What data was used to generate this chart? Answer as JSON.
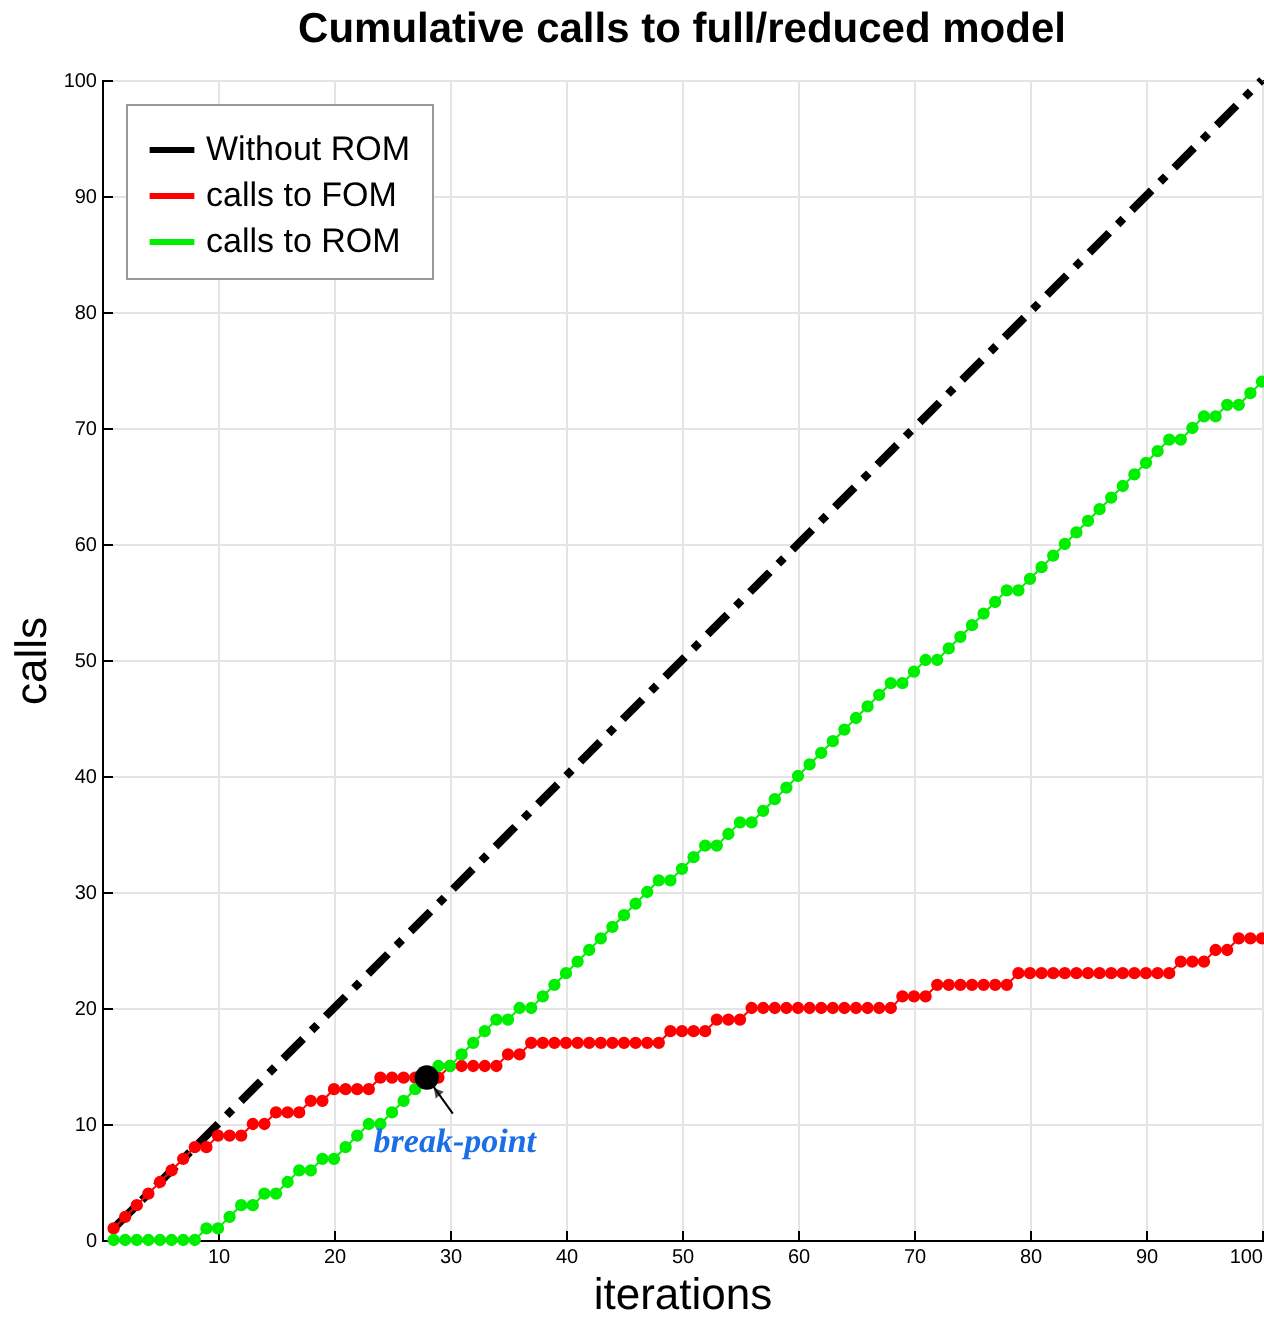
{
  "chart_data": {
    "type": "line",
    "title": "Cumulative calls to full/reduced model",
    "xlabel": "iterations",
    "ylabel": "calls",
    "x": [
      1,
      2,
      3,
      4,
      5,
      6,
      7,
      8,
      9,
      10,
      11,
      12,
      13,
      14,
      15,
      16,
      17,
      18,
      19,
      20,
      21,
      22,
      23,
      24,
      25,
      26,
      27,
      28,
      29,
      30,
      31,
      32,
      33,
      34,
      35,
      36,
      37,
      38,
      39,
      40,
      41,
      42,
      43,
      44,
      45,
      46,
      47,
      48,
      49,
      50,
      51,
      52,
      53,
      54,
      55,
      56,
      57,
      58,
      59,
      60,
      61,
      62,
      63,
      64,
      65,
      66,
      67,
      68,
      69,
      70,
      71,
      72,
      73,
      74,
      75,
      76,
      77,
      78,
      79,
      80,
      81,
      82,
      83,
      84,
      85,
      86,
      87,
      88,
      89,
      90,
      91,
      92,
      93,
      94,
      95,
      96,
      97,
      98,
      99,
      100
    ],
    "series": [
      {
        "name": "Without ROM",
        "color": "#000000",
        "x": [
          1,
          100
        ],
        "values": [
          1,
          100
        ],
        "line_style": "dashed",
        "marker": "none"
      },
      {
        "name": "calls to FOM",
        "color": "#ff0000",
        "marker": "circle",
        "line_style": "solid",
        "values": [
          1,
          2,
          3,
          4,
          5,
          6,
          7,
          8,
          8,
          9,
          9,
          9,
          10,
          10,
          11,
          11,
          11,
          12,
          12,
          13,
          13,
          13,
          13,
          14,
          14,
          14,
          14,
          14,
          14,
          15,
          15,
          15,
          15,
          15,
          16,
          16,
          17,
          17,
          17,
          17,
          17,
          17,
          17,
          17,
          17,
          17,
          17,
          17,
          18,
          18,
          18,
          18,
          19,
          19,
          19,
          20,
          20,
          20,
          20,
          20,
          20,
          20,
          20,
          20,
          20,
          20,
          20,
          20,
          21,
          21,
          21,
          22,
          22,
          22,
          22,
          22,
          22,
          22,
          23,
          23,
          23,
          23,
          23,
          23,
          23,
          23,
          23,
          23,
          23,
          23,
          23,
          23,
          24,
          24,
          24,
          25,
          25,
          26,
          26,
          26
        ]
      },
      {
        "name": "calls to ROM",
        "color": "#00ee00",
        "marker": "circle",
        "line_style": "solid",
        "values": [
          0,
          0,
          0,
          0,
          0,
          0,
          0,
          0,
          1,
          1,
          2,
          3,
          3,
          4,
          4,
          5,
          6,
          6,
          7,
          7,
          8,
          9,
          10,
          10,
          11,
          12,
          13,
          14,
          15,
          15,
          16,
          17,
          18,
          19,
          19,
          20,
          20,
          21,
          22,
          23,
          24,
          25,
          26,
          27,
          28,
          29,
          30,
          31,
          31,
          32,
          33,
          34,
          34,
          35,
          36,
          36,
          37,
          38,
          39,
          40,
          41,
          42,
          43,
          44,
          45,
          46,
          47,
          48,
          48,
          49,
          50,
          50,
          51,
          52,
          53,
          54,
          55,
          56,
          56,
          57,
          58,
          59,
          60,
          61,
          62,
          63,
          64,
          65,
          66,
          67,
          68,
          69,
          69,
          70,
          71,
          71,
          72,
          72,
          73,
          74
        ]
      },
      {
        "type": "scatter",
        "color": "#000000",
        "x": [
          28
        ],
        "values": [
          14
        ],
        "marker": "circle"
      }
    ],
    "annotations": [
      {
        "text": "break-point",
        "x": 28,
        "y": 14
      }
    ],
    "xlim": [
      0,
      100
    ],
    "ylim": [
      0,
      100
    ],
    "xticks": [
      10,
      20,
      30,
      40,
      50,
      60,
      70,
      80,
      90,
      100
    ],
    "yticks": [
      0,
      10,
      20,
      30,
      40,
      50,
      60,
      70,
      80,
      90,
      100
    ],
    "grid": true,
    "legend": "top left"
  }
}
